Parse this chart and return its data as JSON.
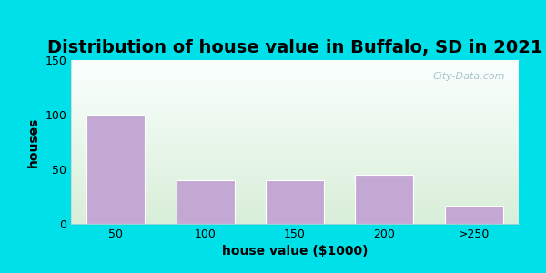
{
  "title": "Distribution of house value in Buffalo, SD in 2021",
  "xlabel": "house value ($1000)",
  "ylabel": "houses",
  "bar_labels": [
    "50",
    "100",
    "150",
    "200",
    ">250"
  ],
  "bar_values": [
    100,
    40,
    40,
    45,
    17
  ],
  "bar_color": "#C4A8D4",
  "bar_edge_color": "#C4A8D4",
  "ylim": [
    0,
    150
  ],
  "yticks": [
    0,
    50,
    100,
    150
  ],
  "bg_outer": "#00E0E8",
  "bg_inner_top": "#D8EED8",
  "bg_inner_bottom": "#FAFFFE",
  "title_fontsize": 14,
  "axis_label_fontsize": 10,
  "tick_fontsize": 9,
  "bar_width": 0.65,
  "watermark_text": "City-Data.com"
}
